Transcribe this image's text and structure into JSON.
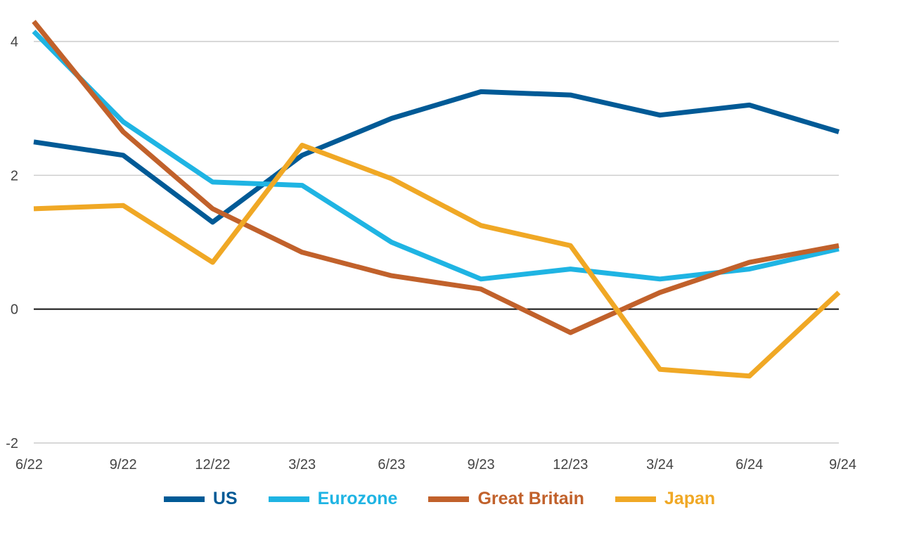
{
  "chart_data": {
    "type": "line",
    "title": "",
    "xlabel": "",
    "ylabel": "",
    "categories": [
      "6/22",
      "9/22",
      "12/22",
      "3/23",
      "6/23",
      "9/23",
      "12/23",
      "3/24",
      "6/24",
      "9/24"
    ],
    "ylim": [
      -2,
      4.3
    ],
    "yticks": [
      4,
      2,
      0,
      -2
    ],
    "ytick_labels": [
      "4",
      "2",
      "0",
      "-2"
    ],
    "grid": true,
    "legend_position": "bottom",
    "series": [
      {
        "name": "US",
        "color": "#005a96",
        "values": [
          2.5,
          2.3,
          1.3,
          2.3,
          2.85,
          3.25,
          3.2,
          2.9,
          3.05,
          2.65
        ]
      },
      {
        "name": "Eurozone",
        "color": "#1fb4e3",
        "values": [
          4.15,
          2.8,
          1.9,
          1.85,
          1.0,
          0.45,
          0.6,
          0.45,
          0.6,
          0.9
        ]
      },
      {
        "name": "Great Britain",
        "color": "#c1612b",
        "values": [
          4.3,
          2.65,
          1.5,
          0.85,
          0.5,
          0.3,
          -0.35,
          0.25,
          0.7,
          0.95
        ]
      },
      {
        "name": "Japan",
        "color": "#f0a825",
        "values": [
          1.5,
          1.55,
          0.7,
          2.45,
          1.95,
          1.25,
          0.95,
          -0.9,
          -1.0,
          0.25
        ]
      }
    ]
  }
}
